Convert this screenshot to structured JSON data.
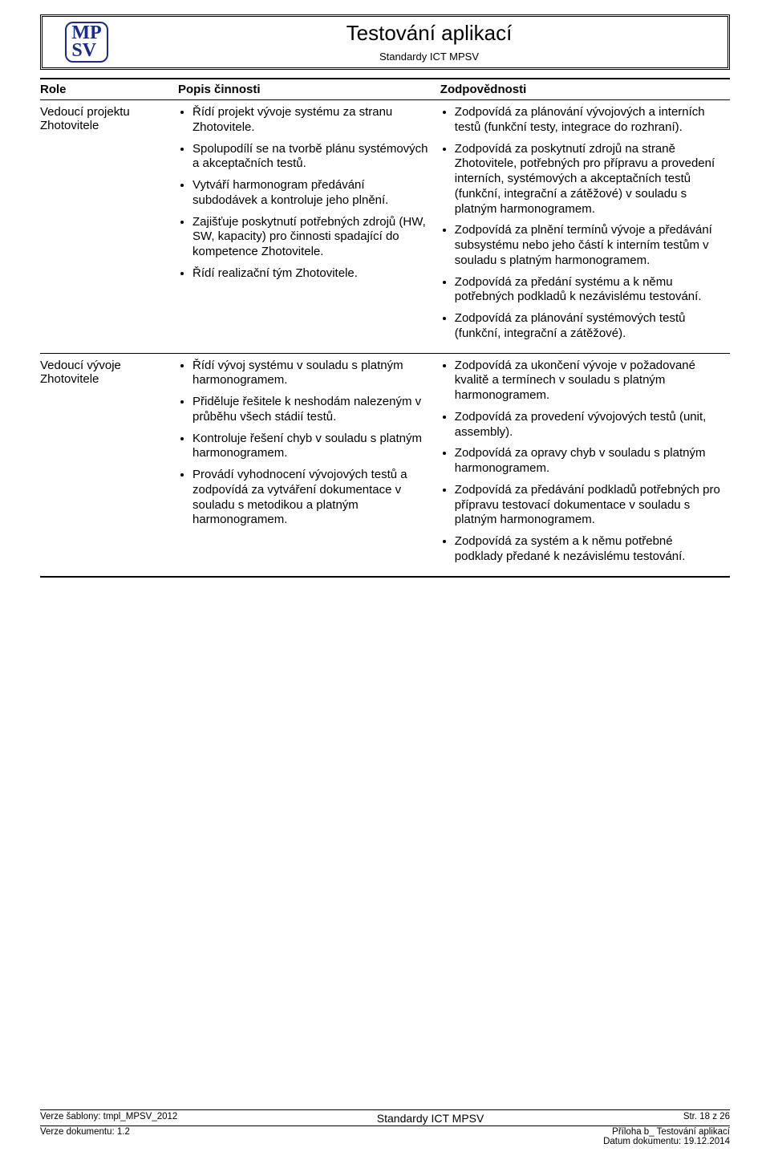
{
  "header": {
    "logoLine1": "MP",
    "logoLine2": "SV",
    "title": "Testování aplikací",
    "subtitle": "Standardy ICT MPSV"
  },
  "table": {
    "headers": {
      "role": "Role",
      "desc": "Popis činnosti",
      "resp": "Zodpovědnosti"
    },
    "rows": [
      {
        "role": "Vedoucí projektu Zhotovitele",
        "desc": [
          "Řídí projekt vývoje systému za stranu Zhotovitele.",
          "Spolupodílí se na tvorbě plánu systémových a akceptačních testů.",
          "Vytváří harmonogram předávání subdodávek a kontroluje jeho plnění.",
          "Zajišťuje poskytnutí potřebných zdrojů (HW, SW, kapacity) pro činnosti spadající do kompetence Zhotovitele.",
          "Řídí realizační tým Zhotovitele."
        ],
        "resp": [
          "Zodpovídá za plánování vývojových a interních testů (funkční testy, integrace do rozhraní).",
          "Zodpovídá za poskytnutí zdrojů na straně Zhotovitele, potřebných pro přípravu a provedení interních, systémových a akceptačních testů (funkční, integrační a zátěžové) v souladu s platným harmonogramem.",
          "Zodpovídá za plnění termínů vývoje a předávání subsystému nebo jeho částí k interním testům v souladu s platným harmonogramem.",
          "Zodpovídá za předání systému a k němu potřebných podkladů k nezávislému testování.",
          "Zodpovídá za plánování systémových testů (funkční, integrační a zátěžové)."
        ]
      },
      {
        "role": "Vedoucí vývoje Zhotovitele",
        "desc": [
          "Řídí vývoj systému v souladu s platným harmonogramem.",
          "Přiděluje řešitele k neshodám nalezeným v průběhu všech stádií testů.",
          "Kontroluje řešení chyb v souladu s platným harmonogramem.",
          "Provádí vyhodnocení vývojových testů a zodpovídá za vytváření dokumentace v souladu s metodikou a platným harmonogramem."
        ],
        "resp": [
          "Zodpovídá za ukončení vývoje v požadované kvalitě a termínech v souladu s platným harmonogramem.",
          "Zodpovídá za provedení vývojových testů (unit, assembly).",
          "Zodpovídá za opravy chyb v souladu s platným harmonogramem.",
          "Zodpovídá za předávání podkladů potřebných pro přípravu testovací dokumentace v souladu s platným harmonogramem.",
          "Zodpovídá za systém a k němu potřebné podklady předané k nezávislému testování."
        ]
      }
    ]
  },
  "footer": {
    "templateVersion": "Verze šablony: tmpl_MPSV_2012",
    "centerText": "Standardy ICT MPSV",
    "pageStr": "Str. 18 z 26",
    "docVersion": "Verze dokumentu: 1.2",
    "attachment": "Příloha b_ Testování aplikací",
    "docDate": "Datum dokumentu: 19.12.2014"
  }
}
